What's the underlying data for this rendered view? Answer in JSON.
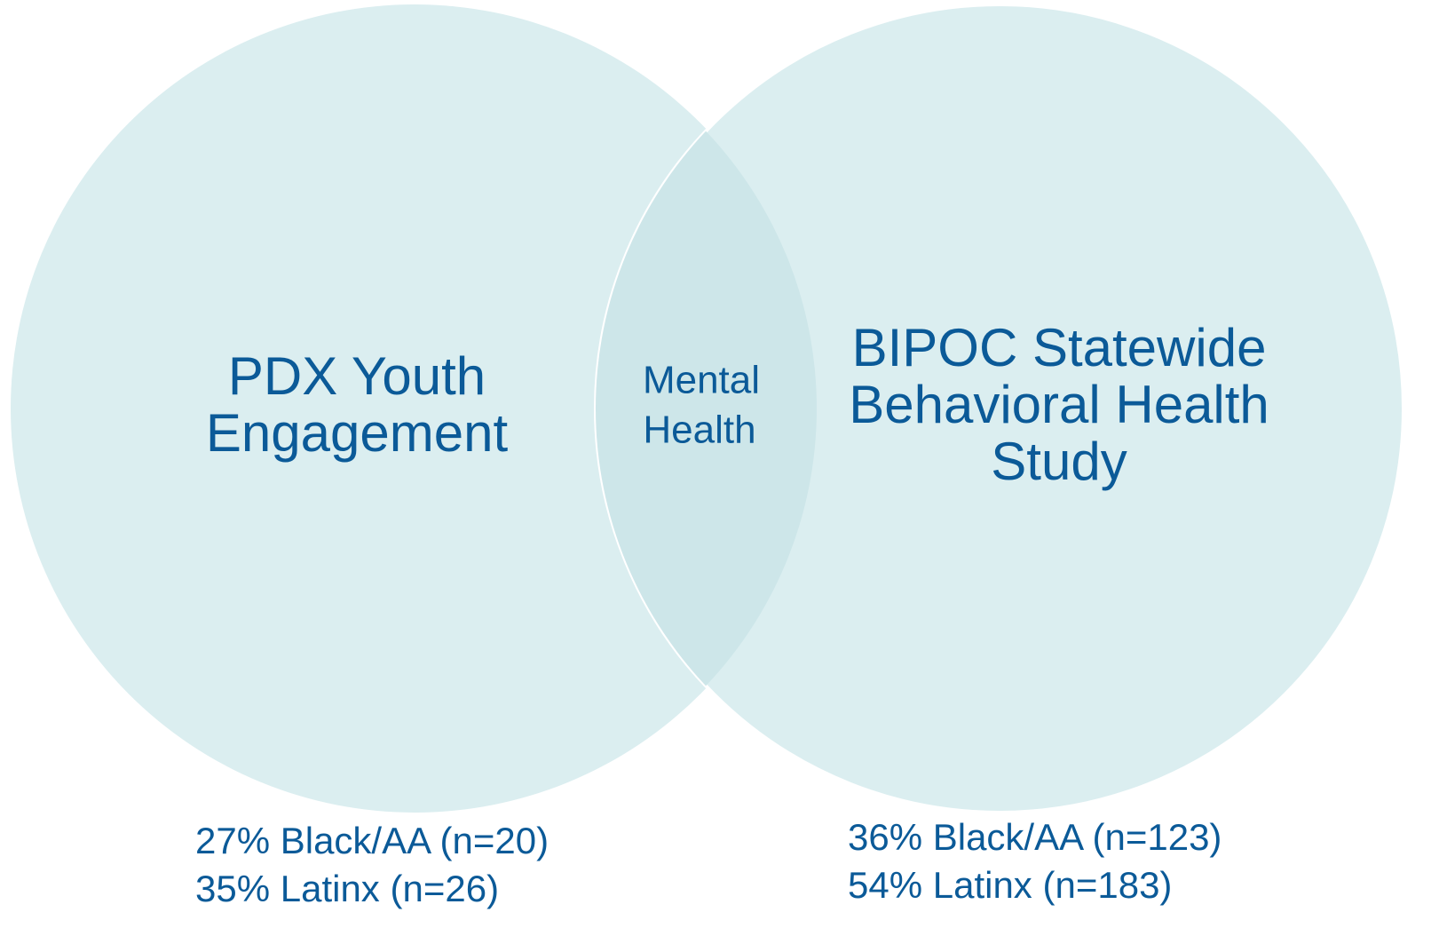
{
  "left": {
    "label": [
      "PDX Youth",
      "Engagement"
    ],
    "stats": [
      "27% Black/AA (n=20)",
      "35% Latinx (n=26)"
    ]
  },
  "overlap": {
    "label": [
      "Mental",
      "Health"
    ]
  },
  "right": {
    "label": [
      "BIPOC Statewide",
      "Behavioral Health",
      "Study"
    ],
    "stats": [
      "36% Black/AA (n=123)",
      "54% Latinx (n=183)"
    ]
  }
}
